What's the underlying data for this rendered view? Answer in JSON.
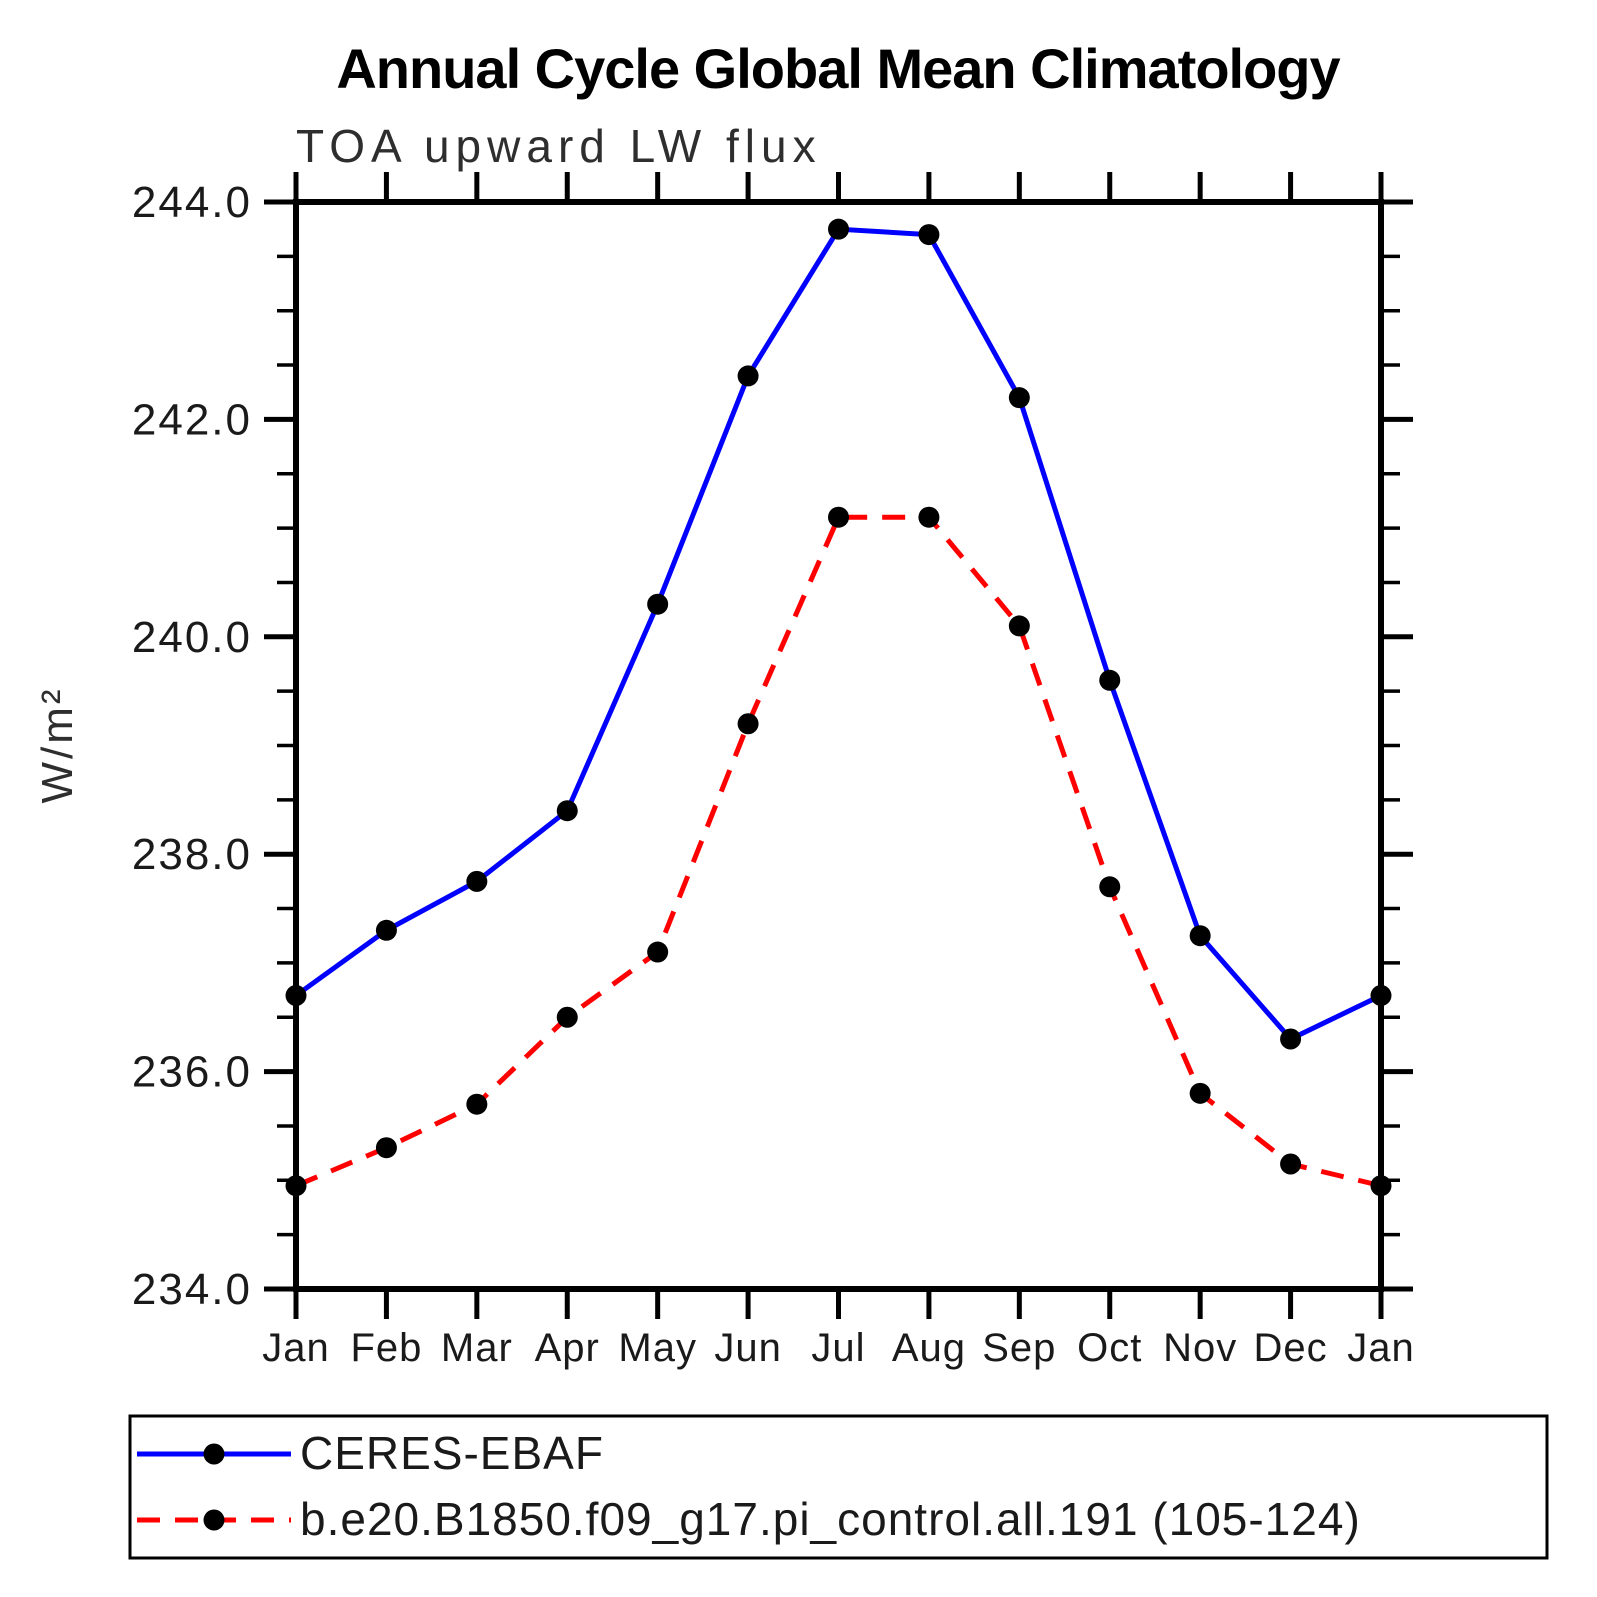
{
  "header": {
    "title": "Annual Cycle Global Mean Climatology",
    "subtitle": "TOA upward LW flux"
  },
  "chart_data": {
    "type": "line",
    "title": "Annual Cycle Global Mean Climatology",
    "subtitle": "TOA upward LW flux",
    "xlabel": "",
    "ylabel": "W/m²",
    "categories": [
      "Jan",
      "Feb",
      "Mar",
      "Apr",
      "May",
      "Jun",
      "Jul",
      "Aug",
      "Sep",
      "Oct",
      "Nov",
      "Dec",
      "Jan"
    ],
    "series": [
      {
        "name": "CERES-EBAF",
        "color": "#0000ff",
        "line_style": "solid",
        "marker": "filled-circle",
        "marker_color": "#000000",
        "values": [
          236.7,
          237.3,
          237.75,
          238.4,
          240.3,
          242.4,
          243.75,
          243.7,
          242.2,
          239.6,
          237.25,
          236.3,
          236.7
        ]
      },
      {
        "name": "b.e20.B1850.f09_g17.pi_control.all.191 (105-124)",
        "color": "#ff0000",
        "line_style": "dashed",
        "marker": "filled-circle",
        "marker_color": "#000000",
        "values": [
          234.95,
          235.3,
          235.7,
          236.5,
          237.1,
          239.2,
          241.1,
          241.1,
          240.1,
          237.7,
          235.8,
          235.15,
          234.95
        ]
      }
    ],
    "ylim": [
      234.0,
      244.0
    ],
    "ytick_major": [
      234.0,
      236.0,
      238.0,
      240.0,
      242.0,
      244.0
    ],
    "ytick_labels": [
      "234.0",
      "236.0",
      "238.0",
      "240.0",
      "242.0",
      "244.0"
    ],
    "ytick_minor_step": 0.5,
    "grid": false,
    "legend_position": "bottom",
    "axis_color": "#000000",
    "background_color": "#ffffff"
  }
}
